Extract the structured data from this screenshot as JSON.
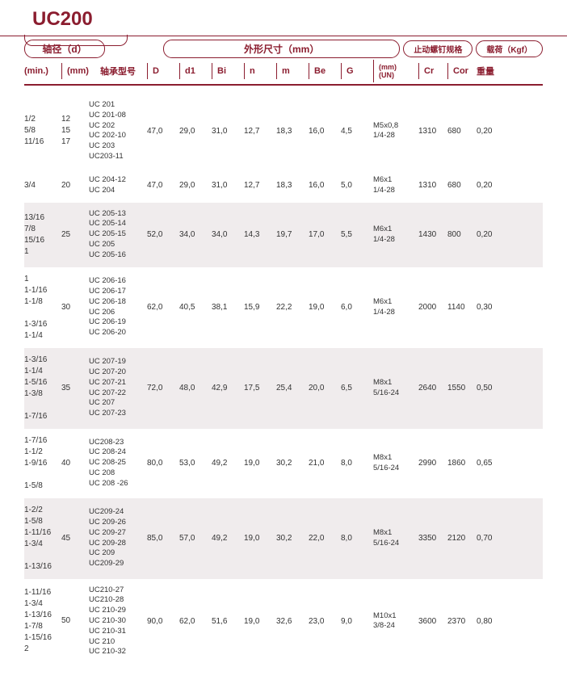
{
  "title": "UC200",
  "headers": {
    "shaft_d": "轴径（d）",
    "outline_mm": "外形尺寸（mm）",
    "set_screw": "止动螺钉规格",
    "load_kgf": "载荷（Kgf）",
    "min": "(min.)",
    "mm_col": "(mm)",
    "model": "轴承型号",
    "D": "D",
    "d1": "d1",
    "Bi": "Bi",
    "n": "n",
    "m": "m",
    "Be": "Be",
    "G": "G",
    "th_mm": "(mm)",
    "th_un": "(UN)",
    "Cr": "Cr",
    "Cor": "Cor",
    "weight": "重量"
  },
  "rows": [
    {
      "alt": false,
      "min": [
        "1/2",
        "5/8",
        "11/16"
      ],
      "mm": [
        "12",
        "15",
        "17"
      ],
      "models": [
        "UC 201",
        "UC 201-08",
        "UC 202",
        "UC 202-10",
        "UC 203",
        "UC203-11"
      ],
      "D": "47,0",
      "d1": "29,0",
      "Bi": "31,0",
      "n": "12,7",
      "m": "18,3",
      "Be": "16,0",
      "G": "4,5",
      "th": [
        "M5x0,8",
        "1/4-28"
      ],
      "Cr": "1310",
      "Cor": "680",
      "wt": "0,20"
    },
    {
      "alt": false,
      "min": [
        "3/4"
      ],
      "mm": [
        "20"
      ],
      "models": [
        "UC 204-12",
        "UC 204"
      ],
      "D": "47,0",
      "d1": "29,0",
      "Bi": "31,0",
      "n": "12,7",
      "m": "18,3",
      "Be": "16,0",
      "G": "5,0",
      "th": [
        "M6x1",
        "1/4-28"
      ],
      "Cr": "1310",
      "Cor": "680",
      "wt": "0,20"
    },
    {
      "alt": true,
      "min": [
        "13/16",
        "7/8",
        "15/16",
        "1"
      ],
      "mm": [
        "25"
      ],
      "models": [
        "UC 205-13",
        "UC 205-14",
        "UC 205-15",
        "UC 205",
        "UC 205-16"
      ],
      "D": "52,0",
      "d1": "34,0",
      "Bi": "34,0",
      "n": "14,3",
      "m": "19,7",
      "Be": "17,0",
      "G": "5,5",
      "th": [
        "M6x1",
        "1/4-28"
      ],
      "Cr": "1430",
      "Cor": "800",
      "wt": "0,20"
    },
    {
      "alt": false,
      "min": [
        "1",
        "1-1/16",
        "1-1/8",
        "",
        "1-3/16",
        "1-1/4"
      ],
      "mm": [
        "30"
      ],
      "models": [
        "UC 206-16",
        "UC 206-17",
        "UC 206-18",
        "UC 206",
        "UC 206-19",
        "UC 206-20"
      ],
      "D": "62,0",
      "d1": "40,5",
      "Bi": "38,1",
      "n": "15,9",
      "m": "22,2",
      "Be": "19,0",
      "G": "6,0",
      "th": [
        "M6x1",
        "1/4-28"
      ],
      "Cr": "2000",
      "Cor": "1140",
      "wt": "0,30"
    },
    {
      "alt": true,
      "min": [
        "1-3/16",
        "1-1/4",
        "1-5/16",
        "1-3/8",
        "",
        "1-7/16"
      ],
      "mm": [
        "35"
      ],
      "models": [
        "UC 207-19",
        "UC 207-20",
        "UC 207-21",
        "UC 207-22",
        "UC 207",
        "UC 207-23"
      ],
      "D": "72,0",
      "d1": "48,0",
      "Bi": "42,9",
      "n": "17,5",
      "m": "25,4",
      "Be": "20,0",
      "G": "6,5",
      "th": [
        "M8x1",
        "5/16-24"
      ],
      "Cr": "2640",
      "Cor": "1550",
      "wt": "0,50"
    },
    {
      "alt": false,
      "min": [
        "1-7/16",
        "1-1/2",
        "1-9/16",
        "",
        "1-5/8"
      ],
      "mm": [
        "40"
      ],
      "models": [
        "UC208-23",
        "UC 208-24",
        "UC 208-25",
        "UC 208",
        "UC 208 -26"
      ],
      "D": "80,0",
      "d1": "53,0",
      "Bi": "49,2",
      "n": "19,0",
      "m": "30,2",
      "Be": "21,0",
      "G": "8,0",
      "th": [
        "M8x1",
        "5/16-24"
      ],
      "Cr": "2990",
      "Cor": "1860",
      "wt": "0,65"
    },
    {
      "alt": true,
      "min": [
        "1-2/2",
        "1-5/8",
        "1-11/16",
        "1-3/4",
        "",
        "1-13/16"
      ],
      "mm": [
        "45"
      ],
      "models": [
        "UC209-24",
        "UC 209-26",
        "UC 209-27",
        "UC 209-28",
        "UC 209",
        "UC209-29"
      ],
      "D": "85,0",
      "d1": "57,0",
      "Bi": "49,2",
      "n": "19,0",
      "m": "30,2",
      "Be": "22,0",
      "G": "8,0",
      "th": [
        "M8x1",
        "5/16-24"
      ],
      "Cr": "3350",
      "Cor": "2120",
      "wt": "0,70"
    },
    {
      "alt": false,
      "min": [
        "1-11/16",
        "1-3/4",
        "1-13/16",
        "1-7/8",
        "1-15/16",
        "2"
      ],
      "mm": [
        "50"
      ],
      "models": [
        "UC210-27",
        "UC210-28",
        "UC 210-29",
        "UC 210-30",
        "UC 210-31",
        "UC 210",
        "UC 210-32"
      ],
      "D": "90,0",
      "d1": "62,0",
      "Bi": "51,6",
      "n": "19,0",
      "m": "32,6",
      "Be": "23,0",
      "G": "9,0",
      "th": [
        "M10x1",
        "3/8-24"
      ],
      "Cr": "3600",
      "Cor": "2370",
      "wt": "0,80"
    }
  ]
}
